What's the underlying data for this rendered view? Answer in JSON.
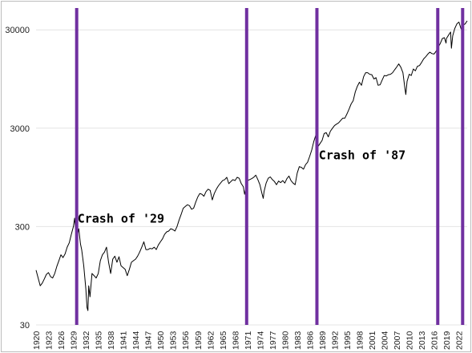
{
  "chart_data": {
    "type": "line",
    "title": "",
    "xlabel": "",
    "ylabel": "",
    "y_scale": "log",
    "ylim": [
      30,
      50000
    ],
    "xlim": [
      1920,
      2024
    ],
    "y_ticks": [
      30,
      300,
      3000,
      30000
    ],
    "x_ticks": [
      1920,
      1923,
      1926,
      1929,
      1932,
      1935,
      1938,
      1941,
      1944,
      1947,
      1950,
      1953,
      1956,
      1959,
      1962,
      1965,
      1968,
      1971,
      1974,
      1977,
      1980,
      1983,
      1986,
      1989,
      1992,
      1995,
      1998,
      2001,
      2004,
      2007,
      2010,
      2013,
      2016,
      2019,
      2022
    ],
    "grid": "horizontal",
    "legend": "none",
    "series": [
      {
        "values": [
          [
            1920,
            108
          ],
          [
            1920.5,
            90
          ],
          [
            1921,
            75
          ],
          [
            1921.5,
            80
          ],
          [
            1922,
            88
          ],
          [
            1922.5,
            98
          ],
          [
            1923,
            102
          ],
          [
            1923.5,
            93
          ],
          [
            1924,
            90
          ],
          [
            1924.5,
            100
          ],
          [
            1925,
            118
          ],
          [
            1925.5,
            135
          ],
          [
            1926,
            155
          ],
          [
            1926.5,
            145
          ],
          [
            1927,
            158
          ],
          [
            1927.5,
            185
          ],
          [
            1928,
            205
          ],
          [
            1928.5,
            250
          ],
          [
            1929,
            300
          ],
          [
            1929.3,
            365
          ],
          [
            1929.7,
            238
          ],
          [
            1930,
            250
          ],
          [
            1930.3,
            285
          ],
          [
            1930.7,
            200
          ],
          [
            1931,
            175
          ],
          [
            1931.5,
            120
          ],
          [
            1932,
            70
          ],
          [
            1932.3,
            45
          ],
          [
            1932.5,
            42
          ],
          [
            1932.7,
            75
          ],
          [
            1933,
            58
          ],
          [
            1933.5,
            100
          ],
          [
            1934,
            95
          ],
          [
            1934.5,
            90
          ],
          [
            1935,
            100
          ],
          [
            1935.5,
            135
          ],
          [
            1936,
            155
          ],
          [
            1936.5,
            165
          ],
          [
            1937,
            185
          ],
          [
            1937.5,
            130
          ],
          [
            1938,
            100
          ],
          [
            1938.5,
            140
          ],
          [
            1939,
            150
          ],
          [
            1939.5,
            130
          ],
          [
            1940,
            148
          ],
          [
            1940.5,
            120
          ],
          [
            1941,
            115
          ],
          [
            1941.5,
            110
          ],
          [
            1942,
            95
          ],
          [
            1942.5,
            110
          ],
          [
            1943,
            130
          ],
          [
            1943.5,
            135
          ],
          [
            1944,
            140
          ],
          [
            1944.5,
            150
          ],
          [
            1945,
            165
          ],
          [
            1945.5,
            185
          ],
          [
            1946,
            210
          ],
          [
            1946.5,
            175
          ],
          [
            1947,
            175
          ],
          [
            1947.5,
            180
          ],
          [
            1948,
            178
          ],
          [
            1948.5,
            185
          ],
          [
            1949,
            175
          ],
          [
            1949.5,
            195
          ],
          [
            1950,
            210
          ],
          [
            1950.5,
            225
          ],
          [
            1951,
            250
          ],
          [
            1951.5,
            265
          ],
          [
            1952,
            270
          ],
          [
            1952.5,
            285
          ],
          [
            1953,
            280
          ],
          [
            1953.5,
            270
          ],
          [
            1954,
            300
          ],
          [
            1954.5,
            350
          ],
          [
            1955,
            400
          ],
          [
            1955.5,
            460
          ],
          [
            1956,
            480
          ],
          [
            1956.5,
            500
          ],
          [
            1957,
            490
          ],
          [
            1957.5,
            450
          ],
          [
            1958,
            460
          ],
          [
            1958.5,
            530
          ],
          [
            1959,
            600
          ],
          [
            1959.5,
            650
          ],
          [
            1960,
            640
          ],
          [
            1960.5,
            610
          ],
          [
            1961,
            680
          ],
          [
            1961.5,
            720
          ],
          [
            1962,
            700
          ],
          [
            1962.5,
            560
          ],
          [
            1963,
            650
          ],
          [
            1963.5,
            720
          ],
          [
            1964,
            780
          ],
          [
            1964.5,
            830
          ],
          [
            1965,
            880
          ],
          [
            1965.5,
            900
          ],
          [
            1966,
            950
          ],
          [
            1966.5,
            820
          ],
          [
            1967,
            860
          ],
          [
            1967.5,
            900
          ],
          [
            1968,
            880
          ],
          [
            1968.5,
            950
          ],
          [
            1969,
            930
          ],
          [
            1969.5,
            820
          ],
          [
            1970,
            760
          ],
          [
            1970.3,
            640
          ],
          [
            1970.7,
            760
          ],
          [
            1971,
            880
          ],
          [
            1971.5,
            900
          ],
          [
            1972,
            920
          ],
          [
            1972.5,
            950
          ],
          [
            1973,
            1000
          ],
          [
            1973.5,
            900
          ],
          [
            1974,
            800
          ],
          [
            1974.5,
            650
          ],
          [
            1974.8,
            580
          ],
          [
            1975,
            680
          ],
          [
            1975.5,
            830
          ],
          [
            1976,
            930
          ],
          [
            1976.5,
            960
          ],
          [
            1977,
            900
          ],
          [
            1977.5,
            860
          ],
          [
            1978,
            800
          ],
          [
            1978.5,
            870
          ],
          [
            1979,
            840
          ],
          [
            1979.5,
            880
          ],
          [
            1980,
            830
          ],
          [
            1980.5,
            920
          ],
          [
            1981,
            980
          ],
          [
            1981.5,
            880
          ],
          [
            1982,
            830
          ],
          [
            1982.5,
            800
          ],
          [
            1983,
            1050
          ],
          [
            1983.5,
            1220
          ],
          [
            1984,
            1200
          ],
          [
            1984.5,
            1150
          ],
          [
            1985,
            1280
          ],
          [
            1985.5,
            1350
          ],
          [
            1986,
            1550
          ],
          [
            1986.5,
            1800
          ],
          [
            1987,
            2200
          ],
          [
            1987.6,
            2650
          ],
          [
            1987.8,
            1800
          ],
          [
            1988,
            1950
          ],
          [
            1988.5,
            2100
          ],
          [
            1989,
            2250
          ],
          [
            1989.5,
            2650
          ],
          [
            1990,
            2700
          ],
          [
            1990.5,
            2450
          ],
          [
            1991,
            2800
          ],
          [
            1991.5,
            3000
          ],
          [
            1992,
            3200
          ],
          [
            1992.5,
            3300
          ],
          [
            1993,
            3400
          ],
          [
            1993.5,
            3600
          ],
          [
            1994,
            3800
          ],
          [
            1994.5,
            3800
          ],
          [
            1995,
            4200
          ],
          [
            1995.5,
            4700
          ],
          [
            1996,
            5300
          ],
          [
            1996.5,
            5700
          ],
          [
            1997,
            7000
          ],
          [
            1997.5,
            8000
          ],
          [
            1998,
            8800
          ],
          [
            1998.5,
            8200
          ],
          [
            1999,
            10000
          ],
          [
            1999.5,
            11000
          ],
          [
            2000,
            11000
          ],
          [
            2000.5,
            10600
          ],
          [
            2001,
            10500
          ],
          [
            2001.5,
            9500
          ],
          [
            2002,
            9800
          ],
          [
            2002.5,
            8200
          ],
          [
            2003,
            8300
          ],
          [
            2003.5,
            9300
          ],
          [
            2004,
            10300
          ],
          [
            2004.5,
            10200
          ],
          [
            2005,
            10500
          ],
          [
            2005.5,
            10600
          ],
          [
            2006,
            11000
          ],
          [
            2006.5,
            11800
          ],
          [
            2007,
            12600
          ],
          [
            2007.5,
            13500
          ],
          [
            2008,
            12500
          ],
          [
            2008.5,
            11000
          ],
          [
            2009,
            7500
          ],
          [
            2009.2,
            6600
          ],
          [
            2009.5,
            9000
          ],
          [
            2010,
            10600
          ],
          [
            2010.5,
            10300
          ],
          [
            2011,
            12000
          ],
          [
            2011.5,
            11500
          ],
          [
            2012,
            12800
          ],
          [
            2012.5,
            13000
          ],
          [
            2013,
            14000
          ],
          [
            2013.5,
            15200
          ],
          [
            2014,
            16000
          ],
          [
            2014.5,
            17000
          ],
          [
            2015,
            17800
          ],
          [
            2015.5,
            17200
          ],
          [
            2016,
            17000
          ],
          [
            2016.5,
            18200
          ],
          [
            2017,
            20000
          ],
          [
            2017.5,
            21800
          ],
          [
            2018,
            24500
          ],
          [
            2018.5,
            25000
          ],
          [
            2018.9,
            22000
          ],
          [
            2019,
            24500
          ],
          [
            2019.5,
            26500
          ],
          [
            2020,
            28500
          ],
          [
            2020.2,
            19500
          ],
          [
            2020.5,
            26000
          ],
          [
            2021,
            31000
          ],
          [
            2021.5,
            34500
          ],
          [
            2022,
            36000
          ],
          [
            2022.5,
            31000
          ],
          [
            2022.8,
            29500
          ],
          [
            2023,
            33500
          ],
          [
            2023.5,
            34500
          ],
          [
            2024,
            37000
          ]
        ]
      }
    ],
    "vertical_markers": [
      1929.8,
      1970.8,
      1987.75,
      2016.9,
      2022.9
    ],
    "marker_color": "#7030a0",
    "line_color": "#000000",
    "annotations": [
      {
        "text": "Crash of '29",
        "x": 1930,
        "y": 330
      },
      {
        "text": "Crash of '87",
        "x": 1988.2,
        "y": 1450
      }
    ]
  }
}
